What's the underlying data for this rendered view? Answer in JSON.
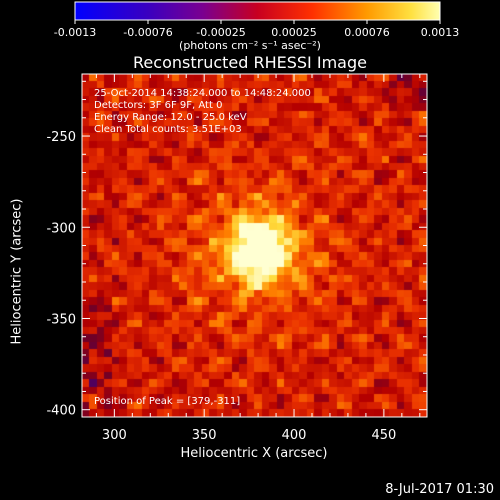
{
  "colorbar": {
    "ticks": [
      "-0.0013",
      "-0.00076",
      "-0.00025",
      "0.00025",
      "0.00076",
      "0.0013"
    ],
    "units_label": "(photons cm⁻² s⁻¹ asec⁻²)"
  },
  "title": "Reconstructed RHESSI Image",
  "info": {
    "time": "25-Oct-2014 14:38:24.000 to 14:48:24.000",
    "detectors": "Detectors: 3F 6F 9F, Att 0",
    "energy": "Energy Range: 12.0 - 25.0 keV",
    "clean": "Clean     Total counts: 3.51E+03"
  },
  "peak": "Position of Peak = [379,-311]",
  "footer_date": "8-Jul-2017 01:30",
  "chart_data": {
    "type": "heatmap",
    "title": "Reconstructed RHESSI Image",
    "xlabel": "Heliocentric X (arcsec)",
    "ylabel": "Heliocentric Y (arcsec)",
    "xlim": [
      282,
      474
    ],
    "ylim": [
      -404,
      -216
    ],
    "x_ticks": [
      300,
      350,
      400,
      450
    ],
    "y_ticks": [
      -250,
      -300,
      -350,
      -400
    ],
    "peak": [
      379,
      -311
    ],
    "colorscale": "rhessi-thermal (blue-purple-red-orange-yellow-white)",
    "colorbar_range": [
      -0.0013,
      0.0013
    ]
  }
}
